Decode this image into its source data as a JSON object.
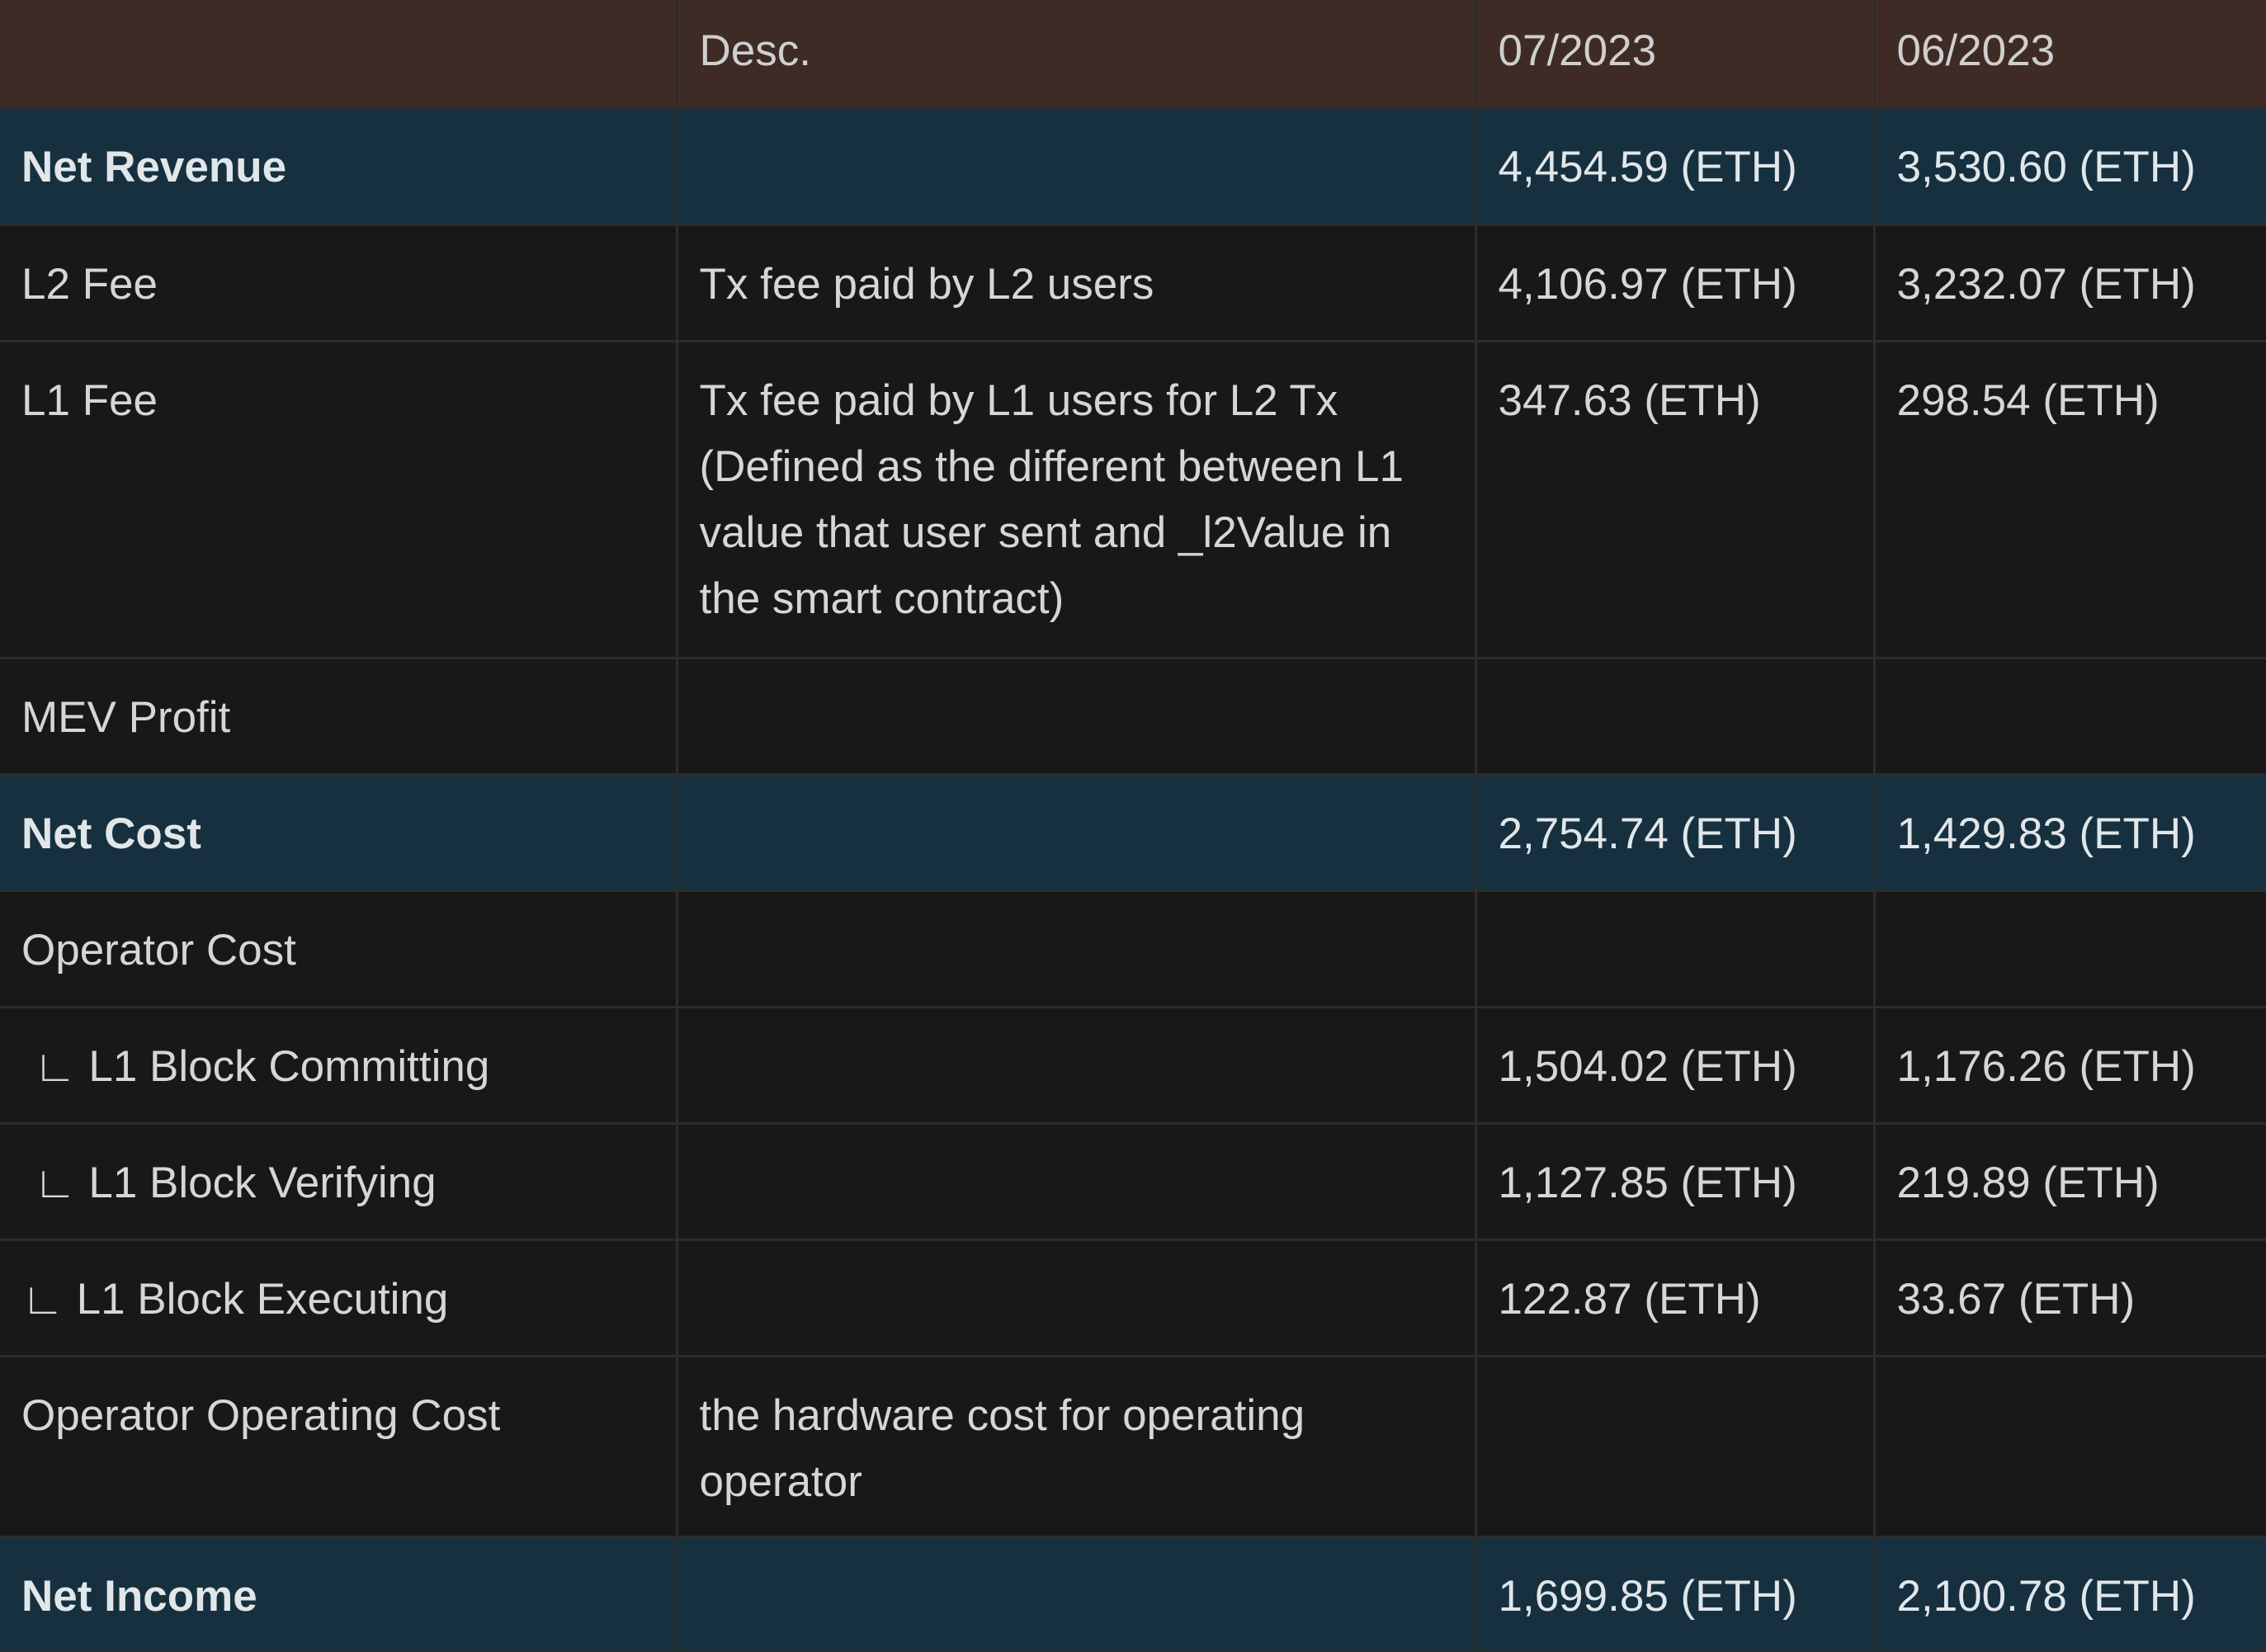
{
  "header": [
    "",
    "Desc.",
    "07/2023",
    "06/2023"
  ],
  "rows": [
    {
      "label": "Net Revenue",
      "desc": "",
      "jul": "4,454.59 (ETH)",
      "jun": "3,530.60 (ETH)",
      "summary": true
    },
    {
      "label": "L2 Fee",
      "desc": "Tx fee paid by L2 users",
      "jul": "4,106.97 (ETH)",
      "jun": "3,232.07 (ETH)"
    },
    {
      "label": "L1 Fee",
      "desc": "Tx fee paid by L1 users for L2 Tx (Defined as the different between L1 value that user sent and _l2Value in the smart contract)",
      "jul": "347.63 (ETH)",
      "jun": "298.54 (ETH)"
    },
    {
      "label": "MEV Profit",
      "desc": "",
      "jul": "",
      "jun": ""
    },
    {
      "label": "Net Cost",
      "desc": "",
      "jul": "2,754.74 (ETH)",
      "jun": "1,429.83 (ETH)",
      "summary": true
    },
    {
      "label": "Operator Cost",
      "desc": "",
      "jul": "",
      "jun": ""
    },
    {
      "label": " ∟ L1 Block Committing",
      "desc": "",
      "jul": "1,504.02 (ETH)",
      "jun": "1,176.26 (ETH)"
    },
    {
      "label": " ∟ L1 Block Verifying",
      "desc": "",
      "jul": "1,127.85 (ETH)",
      "jun": "219.89 (ETH)"
    },
    {
      "label": "∟ L1 Block Executing",
      "desc": "",
      "jul": "122.87 (ETH)",
      "jun": "33.67 (ETH)"
    },
    {
      "label": "Operator Operating Cost",
      "desc": "the hardware cost for operating operator",
      "jul": "",
      "jun": ""
    },
    {
      "label": "Net Income",
      "desc": "",
      "jul": "1,699.85 (ETH)",
      "jun": "2,100.78 (ETH)",
      "summary": true
    }
  ],
  "colors": {
    "header_bg": "#3f2b26",
    "summary_bg": "#16303f",
    "row_bg": "#181818"
  }
}
